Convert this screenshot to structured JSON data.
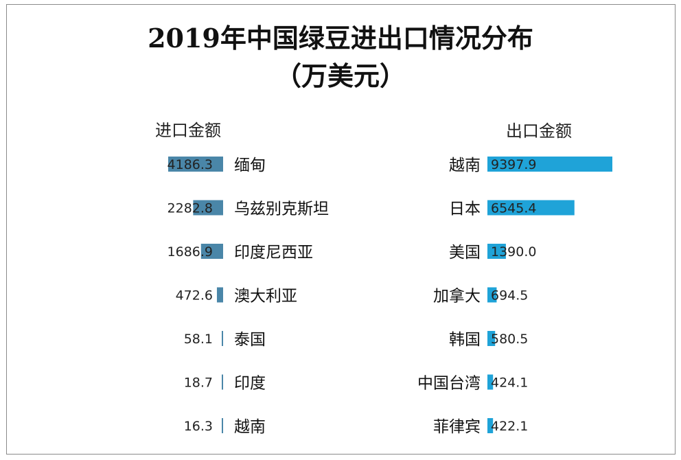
{
  "title": "2019年中国绿豆进出口情况分布",
  "subtitle": "（万美元）",
  "colors": {
    "import_bar": "#4a86a8",
    "export_bar": "#1fa3d8"
  },
  "chart_data": [
    {
      "type": "bar",
      "orientation": "horizontal",
      "direction": "right-to-left",
      "title": "进口金额",
      "categories": [
        "缅甸",
        "乌兹别克斯坦",
        "印度尼西亚",
        "澳大利亚",
        "泰国",
        "印度",
        "越南"
      ],
      "values": [
        4186.3,
        2282.8,
        1686.9,
        472.6,
        58.1,
        18.7,
        16.3
      ],
      "value_labels": [
        "4186.3",
        "2282.8",
        "1686.9",
        "472.6",
        "58.1",
        "18.7",
        "16.3"
      ],
      "color": "#4a86a8"
    },
    {
      "type": "bar",
      "orientation": "horizontal",
      "direction": "left-to-right",
      "title": "出口金额",
      "categories": [
        "越南",
        "日本",
        "美国",
        "加拿大",
        "韩国",
        "中国台湾",
        "菲律宾"
      ],
      "values": [
        9397.9,
        6545.4,
        1390.0,
        694.5,
        580.5,
        424.1,
        422.1
      ],
      "value_labels": [
        "9397.9",
        "6545.4",
        "1390.0",
        "694.5",
        "580.5",
        "424.1",
        "422.1"
      ],
      "color": "#1fa3d8"
    }
  ]
}
